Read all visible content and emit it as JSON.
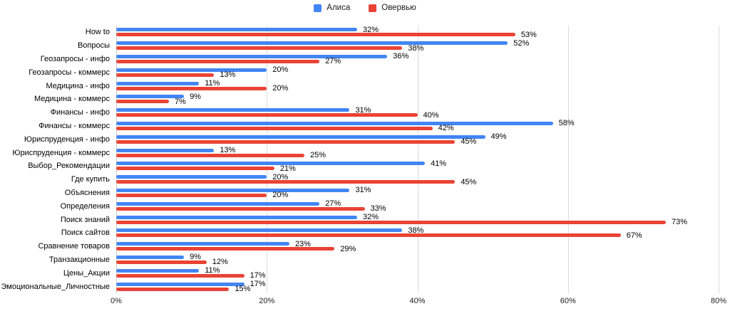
{
  "chart_data": {
    "type": "bar",
    "orientation": "horizontal",
    "title": "",
    "xlabel": "",
    "ylabel": "",
    "xlim": [
      0,
      80
    ],
    "x_ticks": [
      "0%",
      "20%",
      "40%",
      "60%",
      "80%"
    ],
    "value_suffix": "%",
    "grid": true,
    "legend_position": "top",
    "categories": [
      "How to",
      "Вопросы",
      "Геозапросы - инфо",
      "Геозапросы - коммерс",
      "Медицина - инфо",
      "Медицина - коммерс",
      "Финансы - инфо",
      "Финансы - коммерс",
      "Юриспруденция - инфо",
      "Юриспруденция - коммерс",
      "Выбор_Рекомендации",
      "Где купить",
      "Объяснения",
      "Определения",
      "Поиск знаний",
      "Поиск сайтов",
      "Сравнение товаров",
      "Транзакционные",
      "Цены_Акции",
      "Эмоциональные_Личностные"
    ],
    "series": [
      {
        "name": "Алиса",
        "color": "#4285f4",
        "values": [
          32,
          52,
          36,
          20,
          11,
          9,
          31,
          58,
          49,
          13,
          41,
          20,
          31,
          27,
          32,
          38,
          23,
          9,
          11,
          17
        ]
      },
      {
        "name": "Овервью",
        "color": "#ea4335",
        "values": [
          53,
          38,
          27,
          13,
          20,
          7,
          40,
          42,
          45,
          25,
          21,
          45,
          20,
          33,
          73,
          67,
          29,
          12,
          17,
          15
        ]
      }
    ]
  },
  "colors": {
    "gridline": "#dadce0",
    "axis_line": "#c8c8c8",
    "label_text": "#000000",
    "tick_text": "#222222"
  }
}
